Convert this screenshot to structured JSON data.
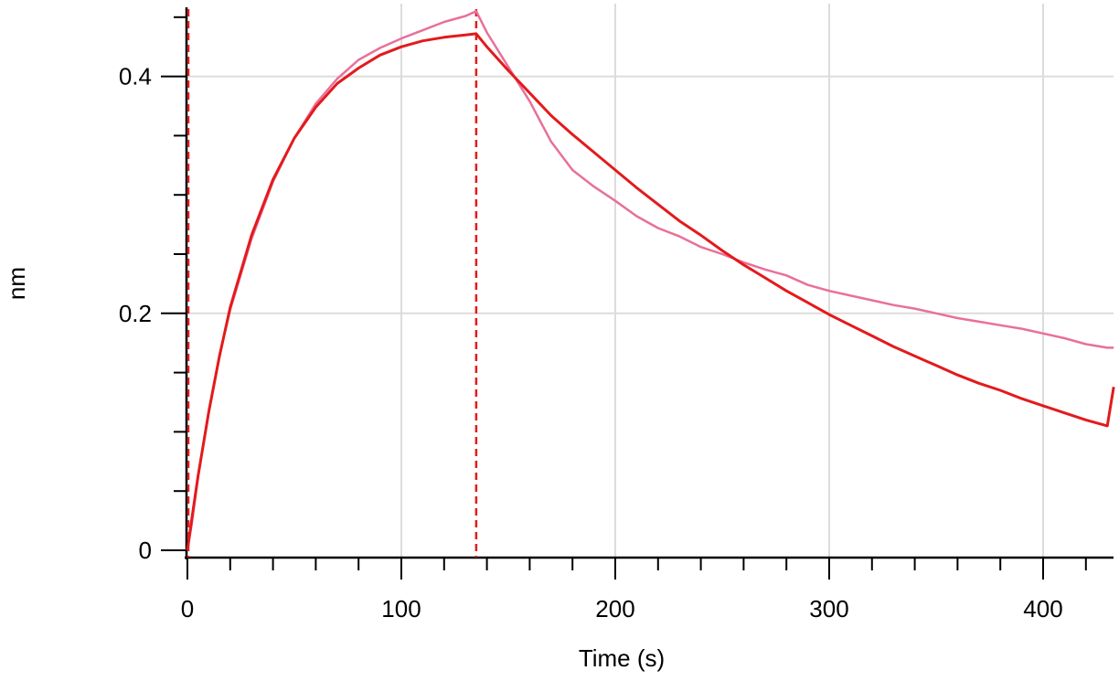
{
  "chart_data": {
    "type": "line",
    "xlabel": "Time (s)",
    "ylabel": "nm",
    "xlim": [
      0,
      433
    ],
    "ylim": [
      -0.005,
      0.458
    ],
    "x_ticks": [
      0,
      100,
      200,
      300,
      400
    ],
    "x_tick_labels": [
      "0",
      "100",
      "200",
      "300",
      "400"
    ],
    "y_ticks": [
      0,
      0.2,
      0.4
    ],
    "y_tick_labels": [
      "0",
      "0.2",
      "0.4"
    ],
    "grid": true,
    "vlines": [
      0,
      135
    ],
    "series": [
      {
        "color": "#e8709b",
        "x": [
          0,
          2,
          5,
          10,
          15,
          20,
          30,
          40,
          50,
          60,
          70,
          80,
          90,
          100,
          110,
          120,
          130,
          135,
          140,
          150,
          160,
          170,
          180,
          190,
          200,
          210,
          220,
          230,
          240,
          250,
          260,
          270,
          280,
          290,
          300,
          310,
          320,
          330,
          340,
          350,
          360,
          370,
          380,
          390,
          400,
          410,
          420,
          430,
          433
        ],
        "y": [
          0.0,
          0.022,
          0.062,
          0.118,
          0.165,
          0.203,
          0.263,
          0.311,
          0.348,
          0.377,
          0.398,
          0.414,
          0.424,
          0.432,
          0.439,
          0.446,
          0.451,
          0.455,
          0.437,
          0.408,
          0.379,
          0.345,
          0.321,
          0.307,
          0.295,
          0.282,
          0.272,
          0.265,
          0.256,
          0.25,
          0.243,
          0.237,
          0.232,
          0.224,
          0.219,
          0.215,
          0.211,
          0.207,
          0.204,
          0.2,
          0.196,
          0.193,
          0.19,
          0.187,
          0.183,
          0.179,
          0.174,
          0.171,
          0.171
        ]
      },
      {
        "color": "#e31a1c",
        "x": [
          0,
          2,
          5,
          10,
          15,
          20,
          30,
          40,
          50,
          60,
          70,
          80,
          90,
          100,
          110,
          120,
          130,
          135,
          140,
          150,
          160,
          170,
          180,
          190,
          200,
          210,
          220,
          230,
          240,
          250,
          260,
          270,
          280,
          290,
          300,
          310,
          320,
          330,
          340,
          350,
          360,
          370,
          380,
          390,
          400,
          410,
          420,
          430,
          433
        ],
        "y": [
          0.0,
          0.026,
          0.063,
          0.117,
          0.164,
          0.205,
          0.266,
          0.313,
          0.348,
          0.374,
          0.394,
          0.407,
          0.418,
          0.425,
          0.43,
          0.433,
          0.435,
          0.436,
          0.425,
          0.405,
          0.386,
          0.367,
          0.351,
          0.336,
          0.321,
          0.306,
          0.292,
          0.278,
          0.266,
          0.253,
          0.241,
          0.23,
          0.219,
          0.209,
          0.199,
          0.19,
          0.181,
          0.172,
          0.164,
          0.156,
          0.148,
          0.141,
          0.135,
          0.128,
          0.122,
          0.116,
          0.11,
          0.105,
          0.138
        ]
      }
    ]
  }
}
